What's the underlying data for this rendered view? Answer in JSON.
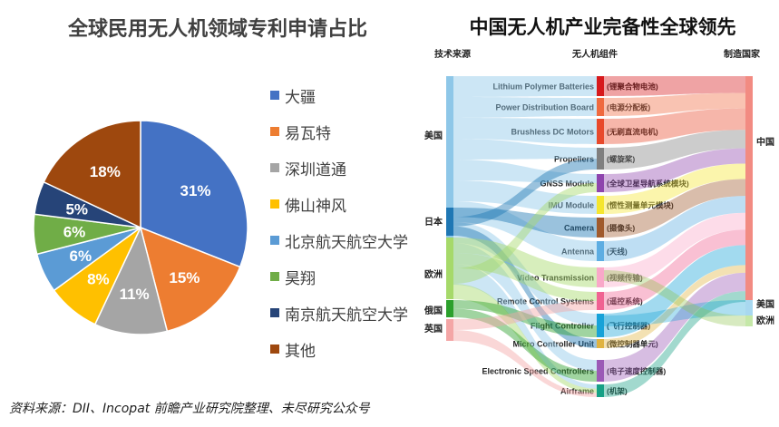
{
  "left_title": "全球民用无人机领域专利申请占比",
  "right_title": "中国无人机产业完备性全球领先",
  "source": "资料来源：DII、Incopat 前瞻产业研究院整理、未尽研究公众号",
  "colors": {
    "pie": [
      "#4472C4",
      "#ED7D31",
      "#A5A5A5",
      "#FFC000",
      "#5B9BD5",
      "#70AD47",
      "#264478",
      "#9E480E"
    ]
  },
  "chart_data": [
    {
      "type": "pie",
      "title": "全球民用无人机领域专利申请占比",
      "categories": [
        "大疆",
        "易瓦特",
        "深圳道通",
        "佛山神风",
        "北京航天航空大学",
        "昊翔",
        "南京航天航空大学",
        "其他"
      ],
      "values": [
        31,
        15,
        11,
        8,
        6,
        6,
        5,
        18
      ],
      "labels": [
        "31%",
        "15%",
        "11%",
        "8%",
        "6%",
        "6%",
        "5%",
        "18%"
      ],
      "legend": "right"
    },
    {
      "type": "sankey",
      "title": "中国无人机产业完备性全球领先",
      "column_headers": [
        "技术来源",
        "无人机组件",
        "制造国家"
      ],
      "sources": [
        "美国",
        "日本",
        "欧洲",
        "俄国",
        "英国"
      ],
      "components": [
        {
          "en": "Lithium Polymer Batteries",
          "cn": "(锂聚合物电池)",
          "color": "#d7191c"
        },
        {
          "en": "Power Distribution Board",
          "cn": "(电源分配板)",
          "color": "#ef6a3f"
        },
        {
          "en": "Brushless DC Motors",
          "cn": "(无刷直流电机)",
          "color": "#e8492b"
        },
        {
          "en": "Propellers",
          "cn": "(螺旋桨)",
          "color": "#7f7f7f"
        },
        {
          "en": "GNSS Module",
          "cn": "(全球卫星导航系统模块)",
          "color": "#8e44ad"
        },
        {
          "en": "IMU Module",
          "cn": "(惯性测量单元模块)",
          "color": "#f5e62f"
        },
        {
          "en": "Camera",
          "cn": "(摄像头)",
          "color": "#a05a2c"
        },
        {
          "en": "Antenna",
          "cn": "(天线)",
          "color": "#5dade2"
        },
        {
          "en": "Video Transmission",
          "cn": "(视频传输)",
          "color": "#f9a8c9"
        },
        {
          "en": "Remote Control Systems",
          "cn": "(遥控系统)",
          "color": "#f06292"
        },
        {
          "en": "Flight Controller",
          "cn": "(飞行控制器)",
          "color": "#17a2d8"
        },
        {
          "en": "Micro Controller Unit",
          "cn": "(微控制器单元)",
          "color": "#e0b341"
        },
        {
          "en": "Electronic Speed Controllers",
          "cn": "(电子速度控制器)",
          "color": "#9b59b6"
        },
        {
          "en": "Airframe",
          "cn": "(机架)",
          "color": "#16a085"
        }
      ],
      "countries": [
        "中国",
        "美国",
        "欧洲"
      ]
    }
  ]
}
